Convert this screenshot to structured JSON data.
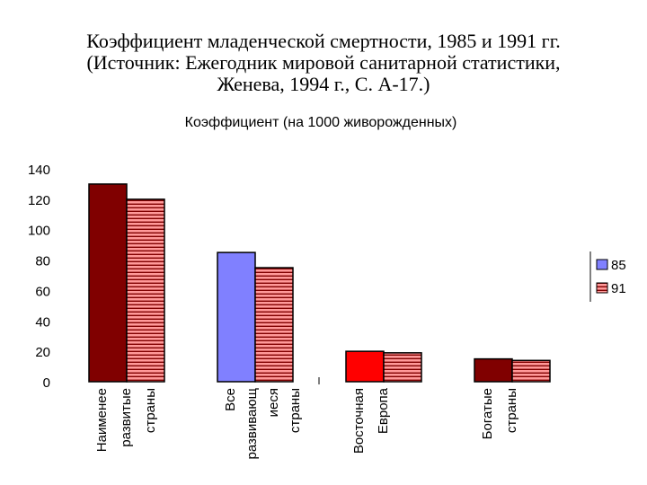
{
  "slide_title": {
    "line1": "Коэффициент младенческой смертности, 1985 и 1991 гг.",
    "line2": "(Источник: Ежегодник мировой санитарной статистики,",
    "line3": "Женева, 1994 г., С. А-17.)"
  },
  "chart_data": {
    "type": "bar",
    "title": "Коэффициент (на 1000 живорожденных)",
    "categories": [
      [
        "Наименее",
        "развитые",
        "страны"
      ],
      [
        "Все",
        "развивающ",
        "иеся",
        "страны"
      ],
      [
        "Восточная",
        "Европа"
      ],
      [
        "Богатые",
        "страны"
      ]
    ],
    "series": [
      {
        "name": "85",
        "values": [
          130,
          85,
          20,
          15
        ],
        "colors": [
          "#800000",
          "#8080ff",
          "#ff0000",
          "#800000"
        ],
        "legend_color": "#8080ff"
      },
      {
        "name": "91",
        "values": [
          120,
          75,
          19,
          14
        ],
        "pattern": "horizontal-stripes",
        "colors": [
          "#ff9999",
          "#800000"
        ]
      }
    ],
    "ylim": [
      0,
      140
    ],
    "yticks": [
      "0",
      "20",
      "40",
      "60",
      "80",
      "100",
      "120",
      "140"
    ],
    "grid": false,
    "legend_placement": "right"
  }
}
